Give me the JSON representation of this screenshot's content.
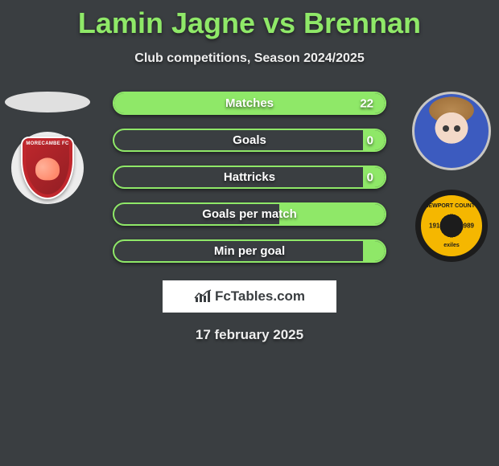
{
  "title": "Lamin Jagne vs Brennan",
  "subtitle": "Club competitions, Season 2024/2025",
  "date": "17 february 2025",
  "brand": {
    "icon": "📊",
    "text": "FcTables.com"
  },
  "colors": {
    "background": "#3a3e41",
    "accent": "#8fe868",
    "text_light": "#eeeeee",
    "white": "#ffffff",
    "club_left_primary": "#c1272d",
    "club_left_bg": "#ececec",
    "club_right_primary": "#f5b700",
    "club_right_bg": "#1c1c1c"
  },
  "player_left": {
    "name": "Lamin Jagne",
    "photo_present": false,
    "club_text": "MORECAMBE FC"
  },
  "player_right": {
    "name": "Brennan",
    "photo_present": true,
    "club_text_top": "NEWPORT COUNTY",
    "club_text_bottom": "exiles",
    "club_year_left": "1912",
    "club_year_right": "1989"
  },
  "stats": {
    "bar_style": {
      "height": 29,
      "border_radius": 15,
      "border_width": 2,
      "label_fontsize": 15
    },
    "rows": [
      {
        "label": "Matches",
        "left": "",
        "right": "22",
        "fill_pct": 100
      },
      {
        "label": "Goals",
        "left": "",
        "right": "0",
        "fill_pct": 8
      },
      {
        "label": "Hattricks",
        "left": "",
        "right": "0",
        "fill_pct": 8
      },
      {
        "label": "Goals per match",
        "left": "",
        "right": "",
        "fill_pct": 39
      },
      {
        "label": "Min per goal",
        "left": "",
        "right": "",
        "fill_pct": 8
      }
    ]
  }
}
